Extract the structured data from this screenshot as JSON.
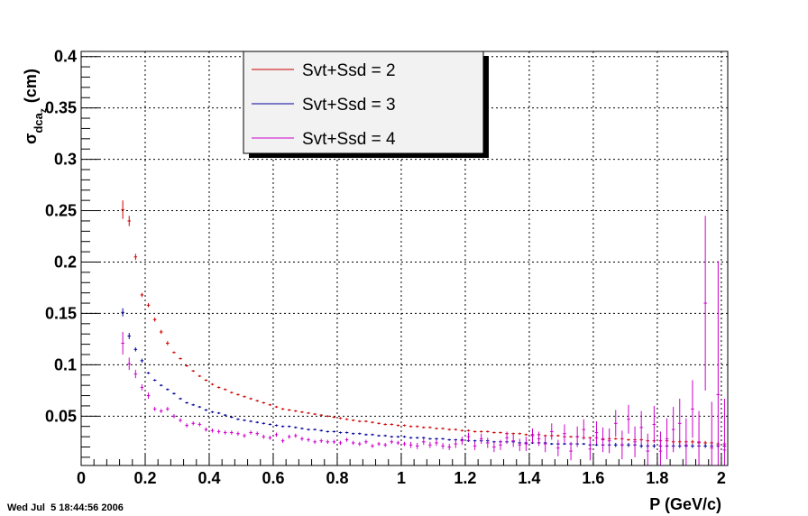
{
  "timestamp": "Wed Jul  5 18:44:56 2006",
  "chart_data": {
    "type": "scatter",
    "title": "",
    "xlabel": "P (GeV/c)",
    "ylabel": {
      "symbol": "σ",
      "sub": "dca",
      "subsub": "z",
      "unit": "(cm)"
    },
    "xlim": [
      0,
      2.02
    ],
    "ylim": [
      0.002,
      0.405
    ],
    "grid": true,
    "legend_position": "top-center",
    "x_ticks": [
      0,
      0.2,
      0.4,
      0.6,
      0.8,
      1,
      1.2,
      1.4,
      1.6,
      1.8,
      2
    ],
    "x_tick_labels": [
      "0",
      "0.2",
      "0.4",
      "0.6",
      "0.8",
      "1",
      "1.2",
      "1.4",
      "1.6",
      "1.8",
      "2"
    ],
    "y_ticks": [
      0.05,
      0.1,
      0.15,
      0.2,
      0.25,
      0.3,
      0.35,
      0.4
    ],
    "y_tick_labels": [
      "0.05",
      "0.1",
      "0.15",
      "0.2",
      "0.25",
      "0.3",
      "0.35",
      "0.4"
    ],
    "bin_half_width": 0.01,
    "series": [
      {
        "name": "Svt+Ssd = 2",
        "color": "#cc0000",
        "x": [
          0.13,
          0.15,
          0.17,
          0.19,
          0.21,
          0.23,
          0.25,
          0.27,
          0.29,
          0.31,
          0.33,
          0.35,
          0.37,
          0.39,
          0.41,
          0.43,
          0.45,
          0.47,
          0.49,
          0.51,
          0.53,
          0.55,
          0.57,
          0.59,
          0.61,
          0.63,
          0.65,
          0.67,
          0.69,
          0.71,
          0.73,
          0.75,
          0.77,
          0.79,
          0.81,
          0.83,
          0.85,
          0.87,
          0.89,
          0.91,
          0.93,
          0.95,
          0.97,
          0.99,
          1.01,
          1.03,
          1.05,
          1.07,
          1.09,
          1.11,
          1.13,
          1.15,
          1.17,
          1.19,
          1.21,
          1.23,
          1.25,
          1.27,
          1.29,
          1.31,
          1.33,
          1.35,
          1.37,
          1.39,
          1.41,
          1.43,
          1.45,
          1.47,
          1.49,
          1.51,
          1.53,
          1.55,
          1.57,
          1.59,
          1.61,
          1.63,
          1.65,
          1.67,
          1.69,
          1.71,
          1.73,
          1.75,
          1.77,
          1.79,
          1.81,
          1.83,
          1.85,
          1.87,
          1.89,
          1.91,
          1.93,
          1.95,
          1.97,
          1.99,
          2.01
        ],
        "y": [
          0.251,
          0.24,
          0.205,
          0.168,
          0.158,
          0.144,
          0.132,
          0.121,
          0.112,
          0.106,
          0.099,
          0.094,
          0.089,
          0.085,
          0.081,
          0.078,
          0.076,
          0.073,
          0.071,
          0.069,
          0.067,
          0.065,
          0.063,
          0.061,
          0.059,
          0.057,
          0.056,
          0.055,
          0.054,
          0.053,
          0.052,
          0.051,
          0.05,
          0.049,
          0.048,
          0.047,
          0.046,
          0.045,
          0.045,
          0.044,
          0.043,
          0.042,
          0.042,
          0.041,
          0.041,
          0.04,
          0.04,
          0.039,
          0.039,
          0.038,
          0.038,
          0.037,
          0.037,
          0.036,
          0.036,
          0.035,
          0.035,
          0.035,
          0.034,
          0.034,
          0.033,
          0.033,
          0.033,
          0.032,
          0.032,
          0.032,
          0.031,
          0.031,
          0.031,
          0.03,
          0.03,
          0.03,
          0.029,
          0.029,
          0.029,
          0.028,
          0.028,
          0.028,
          0.028,
          0.027,
          0.027,
          0.027,
          0.026,
          0.026,
          0.026,
          0.026,
          0.025,
          0.025,
          0.025,
          0.025,
          0.024,
          0.024,
          0.024,
          0.023,
          0.023
        ],
        "err": [
          0.009,
          0.005,
          0.003,
          0.002,
          0.002,
          0.002,
          0.002,
          0.002,
          0.001,
          0.001,
          0.001,
          0.001,
          0.001,
          0.001,
          0.001,
          0.001,
          0.001,
          0.001,
          0.001,
          0.001,
          0.001,
          0.001,
          0.001,
          0.001,
          0.001,
          0.001,
          0.001,
          0.001,
          0.001,
          0.001,
          0.001,
          0.001,
          0.001,
          0.001,
          0.001,
          0.001,
          0.001,
          0.001,
          0.001,
          0.001,
          0.001,
          0.001,
          0.001,
          0.001,
          0.001,
          0.001,
          0.001,
          0.001,
          0.001,
          0.001,
          0.001,
          0.001,
          0.001,
          0.001,
          0.001,
          0.001,
          0.001,
          0.001,
          0.001,
          0.001,
          0.001,
          0.001,
          0.001,
          0.001,
          0.001,
          0.001,
          0.001,
          0.001,
          0.001,
          0.001,
          0.001,
          0.001,
          0.001,
          0.001,
          0.001,
          0.001,
          0.001,
          0.001,
          0.001,
          0.001,
          0.001,
          0.001,
          0.001,
          0.001,
          0.001,
          0.001,
          0.002,
          0.002,
          0.002,
          0.002,
          0.002,
          0.002,
          0.002,
          0.002,
          0.002
        ]
      },
      {
        "name": "Svt+Ssd = 3",
        "color": "#000099",
        "x": [
          0.13,
          0.15,
          0.17,
          0.19,
          0.21,
          0.23,
          0.25,
          0.27,
          0.29,
          0.31,
          0.33,
          0.35,
          0.37,
          0.39,
          0.41,
          0.43,
          0.45,
          0.47,
          0.49,
          0.51,
          0.53,
          0.55,
          0.57,
          0.59,
          0.61,
          0.63,
          0.65,
          0.67,
          0.69,
          0.71,
          0.73,
          0.75,
          0.77,
          0.79,
          0.81,
          0.83,
          0.85,
          0.87,
          0.89,
          0.91,
          0.93,
          0.95,
          0.97,
          0.99,
          1.01,
          1.03,
          1.05,
          1.07,
          1.09,
          1.11,
          1.13,
          1.15,
          1.17,
          1.19,
          1.21,
          1.23,
          1.25,
          1.27,
          1.29,
          1.31,
          1.33,
          1.35,
          1.37,
          1.39,
          1.41,
          1.43,
          1.45,
          1.47,
          1.49,
          1.51,
          1.53,
          1.55,
          1.57,
          1.59,
          1.61,
          1.63,
          1.65,
          1.67,
          1.69,
          1.71,
          1.73,
          1.75,
          1.77,
          1.79,
          1.81,
          1.83,
          1.85,
          1.87,
          1.89,
          1.91,
          1.93,
          1.95,
          1.97,
          1.99,
          2.01
        ],
        "y": [
          0.151,
          0.128,
          0.115,
          0.104,
          0.092,
          0.085,
          0.08,
          0.076,
          0.072,
          0.067,
          0.063,
          0.061,
          0.059,
          0.056,
          0.054,
          0.053,
          0.051,
          0.049,
          0.047,
          0.046,
          0.045,
          0.044,
          0.043,
          0.042,
          0.041,
          0.04,
          0.04,
          0.039,
          0.038,
          0.037,
          0.037,
          0.036,
          0.035,
          0.035,
          0.034,
          0.034,
          0.033,
          0.033,
          0.032,
          0.032,
          0.031,
          0.031,
          0.03,
          0.03,
          0.03,
          0.029,
          0.029,
          0.029,
          0.028,
          0.028,
          0.028,
          0.027,
          0.027,
          0.027,
          0.026,
          0.026,
          0.026,
          0.026,
          0.025,
          0.025,
          0.025,
          0.025,
          0.024,
          0.024,
          0.024,
          0.024,
          0.024,
          0.023,
          0.023,
          0.023,
          0.023,
          0.023,
          0.023,
          0.022,
          0.022,
          0.022,
          0.022,
          0.022,
          0.022,
          0.022,
          0.022,
          0.021,
          0.021,
          0.021,
          0.021,
          0.021,
          0.021,
          0.021,
          0.021,
          0.021,
          0.021,
          0.021,
          0.021,
          0.021,
          0.021
        ],
        "err": [
          0.004,
          0.003,
          0.002,
          0.002,
          0.001,
          0.001,
          0.001,
          0.001,
          0.001,
          0.001,
          0.001,
          0.001,
          0.001,
          0.001,
          0.001,
          0.001,
          0.001,
          0.001,
          0.001,
          0.001,
          0.001,
          0.001,
          0.001,
          0.001,
          0.001,
          0.001,
          0.001,
          0.001,
          0.001,
          0.001,
          0.001,
          0.001,
          0.001,
          0.001,
          0.001,
          0.001,
          0.001,
          0.001,
          0.001,
          0.001,
          0.001,
          0.001,
          0.001,
          0.001,
          0.001,
          0.001,
          0.001,
          0.001,
          0.001,
          0.001,
          0.001,
          0.001,
          0.001,
          0.001,
          0.001,
          0.001,
          0.001,
          0.001,
          0.001,
          0.001,
          0.001,
          0.001,
          0.001,
          0.001,
          0.001,
          0.001,
          0.001,
          0.001,
          0.001,
          0.001,
          0.001,
          0.001,
          0.001,
          0.001,
          0.001,
          0.001,
          0.001,
          0.002,
          0.002,
          0.002,
          0.002,
          0.002,
          0.002,
          0.002,
          0.002,
          0.002,
          0.002,
          0.002,
          0.002,
          0.002,
          0.002,
          0.002,
          0.002,
          0.002,
          0.002
        ]
      },
      {
        "name": "Svt+Ssd = 4",
        "color": "#cc00cc",
        "x": [
          0.13,
          0.15,
          0.17,
          0.19,
          0.21,
          0.23,
          0.25,
          0.27,
          0.29,
          0.31,
          0.33,
          0.35,
          0.37,
          0.39,
          0.41,
          0.43,
          0.45,
          0.47,
          0.49,
          0.51,
          0.53,
          0.55,
          0.57,
          0.59,
          0.61,
          0.63,
          0.65,
          0.67,
          0.69,
          0.71,
          0.73,
          0.75,
          0.77,
          0.79,
          0.81,
          0.83,
          0.85,
          0.87,
          0.89,
          0.91,
          0.93,
          0.95,
          0.97,
          0.99,
          1.01,
          1.03,
          1.05,
          1.07,
          1.09,
          1.11,
          1.13,
          1.15,
          1.17,
          1.19,
          1.21,
          1.23,
          1.25,
          1.27,
          1.29,
          1.31,
          1.33,
          1.35,
          1.37,
          1.39,
          1.41,
          1.43,
          1.45,
          1.47,
          1.49,
          1.51,
          1.53,
          1.55,
          1.57,
          1.59,
          1.61,
          1.63,
          1.65,
          1.67,
          1.69,
          1.71,
          1.73,
          1.75,
          1.77,
          1.79,
          1.81,
          1.83,
          1.85,
          1.87,
          1.89,
          1.91,
          1.93,
          1.95,
          1.97,
          1.99,
          2.01
        ],
        "y": [
          0.121,
          0.101,
          0.091,
          0.078,
          0.07,
          0.057,
          0.055,
          0.057,
          0.05,
          0.046,
          0.041,
          0.043,
          0.042,
          0.037,
          0.036,
          0.035,
          0.034,
          0.034,
          0.033,
          0.031,
          0.034,
          0.033,
          0.03,
          0.029,
          0.032,
          0.026,
          0.03,
          0.031,
          0.028,
          0.027,
          0.025,
          0.026,
          0.025,
          0.025,
          0.024,
          0.027,
          0.024,
          0.023,
          0.025,
          0.021,
          0.023,
          0.022,
          0.025,
          0.024,
          0.023,
          0.022,
          0.021,
          0.025,
          0.022,
          0.024,
          0.021,
          0.02,
          0.023,
          0.026,
          0.03,
          0.021,
          0.028,
          0.024,
          0.02,
          0.022,
          0.029,
          0.026,
          0.022,
          0.023,
          0.031,
          0.028,
          0.023,
          0.035,
          0.019,
          0.033,
          0.016,
          0.03,
          0.037,
          0.018,
          0.034,
          0.027,
          0.026,
          0.043,
          0.022,
          0.047,
          0.025,
          0.039,
          0.016,
          0.042,
          0.016,
          0.028,
          0.037,
          0.043,
          0.022,
          0.057,
          0.025,
          0.16,
          0.019,
          0.071,
          0.017
        ],
        "err": [
          0.011,
          0.006,
          0.004,
          0.003,
          0.003,
          0.002,
          0.002,
          0.002,
          0.002,
          0.002,
          0.002,
          0.002,
          0.002,
          0.002,
          0.002,
          0.002,
          0.002,
          0.002,
          0.002,
          0.002,
          0.002,
          0.002,
          0.002,
          0.002,
          0.002,
          0.002,
          0.002,
          0.002,
          0.002,
          0.002,
          0.002,
          0.002,
          0.002,
          0.002,
          0.002,
          0.002,
          0.002,
          0.002,
          0.002,
          0.002,
          0.002,
          0.002,
          0.002,
          0.002,
          0.002,
          0.003,
          0.003,
          0.003,
          0.003,
          0.003,
          0.003,
          0.003,
          0.004,
          0.004,
          0.004,
          0.004,
          0.005,
          0.005,
          0.005,
          0.005,
          0.006,
          0.006,
          0.006,
          0.007,
          0.007,
          0.007,
          0.008,
          0.008,
          0.008,
          0.009,
          0.009,
          0.01,
          0.01,
          0.011,
          0.011,
          0.012,
          0.012,
          0.013,
          0.014,
          0.014,
          0.015,
          0.016,
          0.017,
          0.018,
          0.019,
          0.02,
          0.022,
          0.024,
          0.026,
          0.028,
          0.03,
          0.085,
          0.045,
          0.13,
          0.05
        ]
      }
    ]
  }
}
